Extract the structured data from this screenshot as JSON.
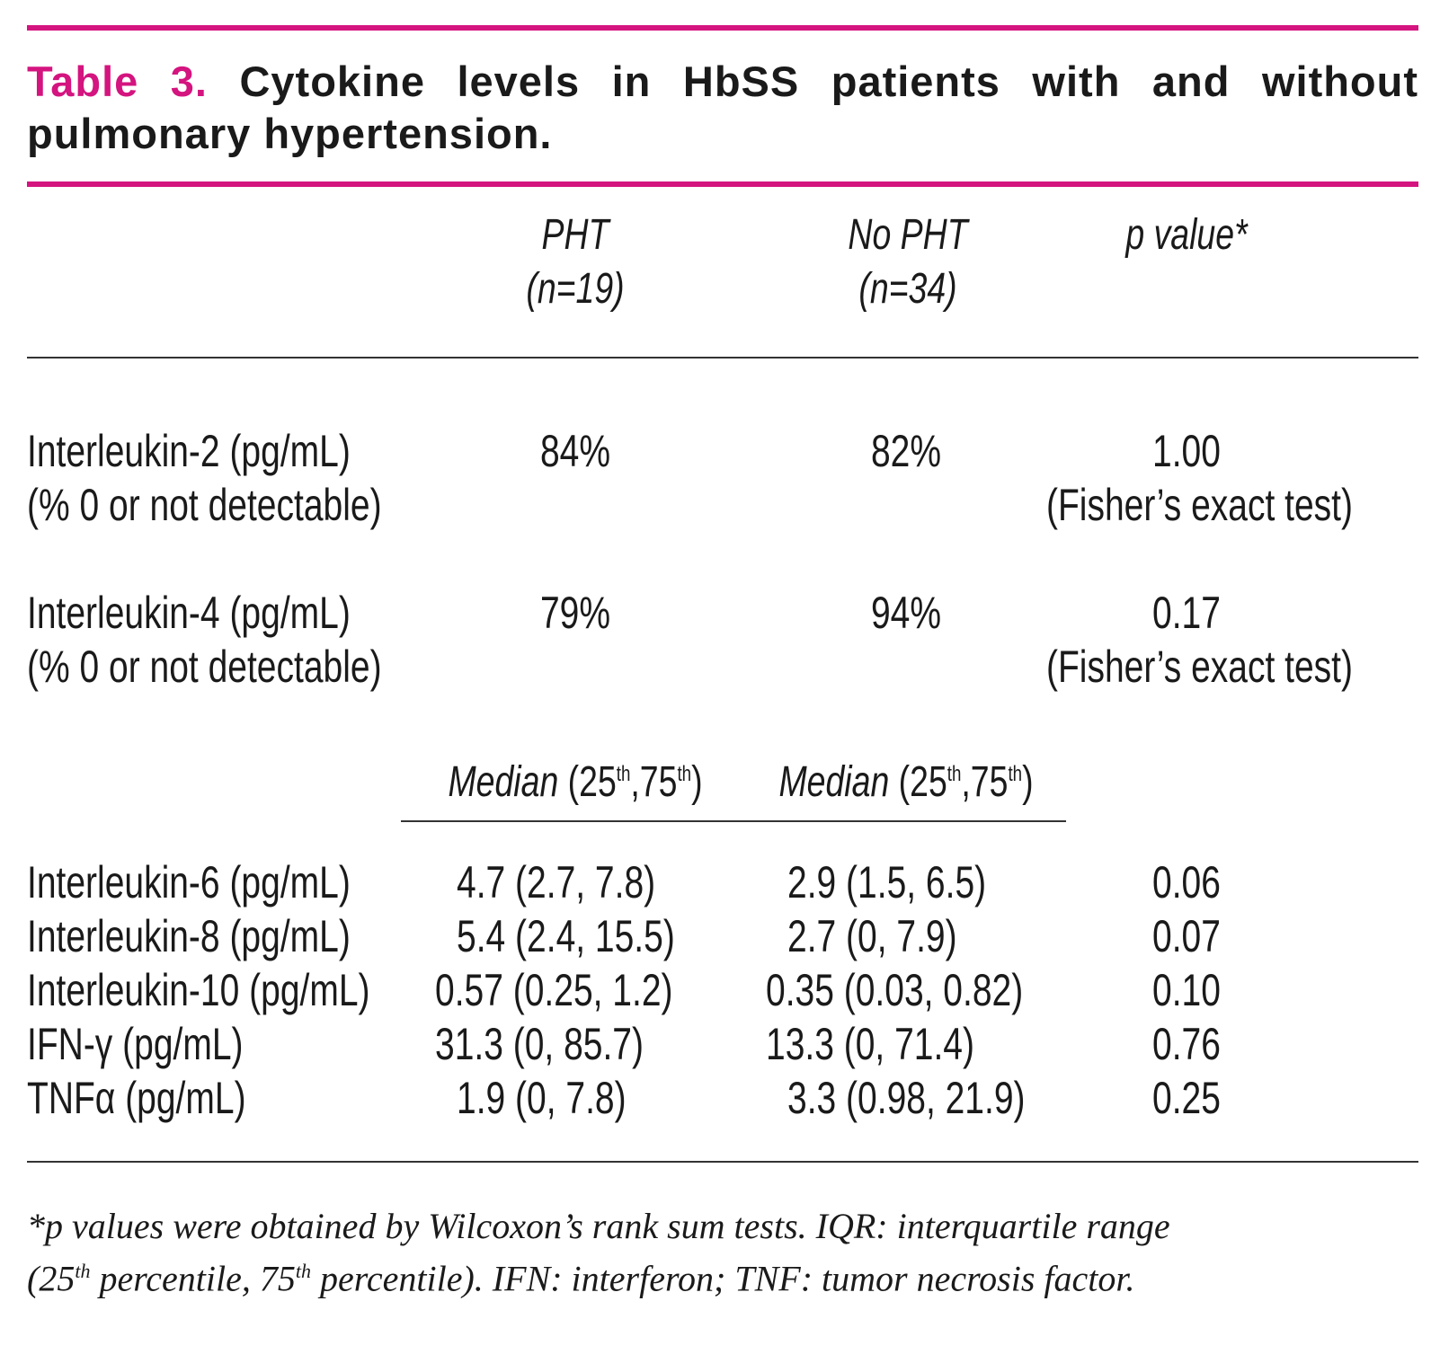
{
  "title": {
    "label": "Table 3.",
    "text": "Cytokine levels in HbSS patients with and without pulmonary hypertension."
  },
  "columns": {
    "pht": "PHT",
    "pht_n": "(n=19)",
    "nopht": "No PHT",
    "nopht_n": "(n=34)",
    "pvalue": "p value*"
  },
  "detect_rows": [
    {
      "label": "Interleukin-2 (pg/mL)",
      "sublabel": "(% 0 or not detectable)",
      "pht": "84%",
      "nopht": "82%",
      "p": "1.00",
      "test": "(Fisher’s exact test)"
    },
    {
      "label": "Interleukin-4 (pg/mL)",
      "sublabel": "(% 0 or not detectable)",
      "pht": "79%",
      "nopht": "94%",
      "p": "0.17",
      "test": "(Fisher’s exact test)"
    }
  ],
  "subheader": {
    "median": "Median",
    "p25": "(25",
    "th": "th",
    "sep": ",75",
    "close": ")"
  },
  "median_rows": [
    {
      "label": "Interleukin-6 (pg/mL)",
      "pht": "4.7 (2.7, 7.8)",
      "nopht": "2.9 (1.5, 6.5)",
      "p": "0.06"
    },
    {
      "label": "Interleukin-8 (pg/mL)",
      "pht": "5.4 (2.4, 15.5)",
      "nopht": "2.7 (0, 7.9)",
      "p": "0.07"
    },
    {
      "label": "Interleukin-10 (pg/mL)",
      "pht": "0.57 (0.25, 1.2)",
      "nopht": "0.35 (0.03, 0.82)",
      "p": "0.10"
    },
    {
      "label": "IFN-γ (pg/mL)",
      "pht": "31.3 (0, 85.7)",
      "nopht": "13.3 (0, 71.4)",
      "p": "0.76"
    },
    {
      "label": "TNFα (pg/mL)",
      "pht": "1.9 (0, 7.8)",
      "nopht": "3.3 (0.98, 21.9)",
      "p": "0.25"
    }
  ],
  "footnote": {
    "line1": "*p values were obtained by Wilcoxon’s rank sum tests. IQR: interquartile range",
    "line2a": "(25",
    "sup1": "th",
    "line2b": " percentile, 75",
    "sup2": "th",
    "line2c": " percentile). IFN: interferon; TNF: tumor necrosis factor."
  }
}
